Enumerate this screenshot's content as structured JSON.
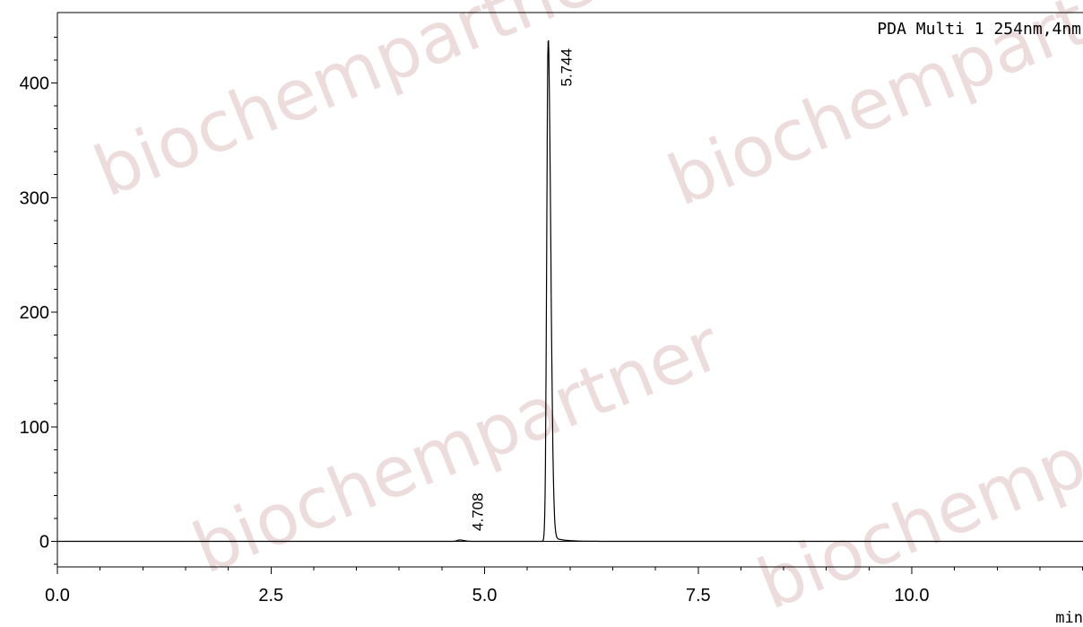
{
  "chart_data": {
    "type": "line",
    "legend": "PDA Multi 1 254nm,4nm",
    "x_unit": "min",
    "xlim": [
      0.0,
      12.0
    ],
    "ylim": [
      -22,
      462
    ],
    "x_ticks": [
      0.0,
      2.5,
      5.0,
      7.5,
      10.0
    ],
    "x_tick_labels": [
      "0.0",
      "2.5",
      "5.0",
      "7.5",
      "10.0"
    ],
    "y_ticks": [
      0,
      100,
      200,
      300,
      400
    ],
    "y_tick_labels": [
      "0",
      "100",
      "200",
      "300",
      "400"
    ],
    "grid": false,
    "peaks": [
      {
        "rt": 4.708,
        "label": "4.708",
        "height": 1.2,
        "width": 0.05
      },
      {
        "rt": 5.744,
        "label": "5.744",
        "height": 436,
        "width": 0.03
      }
    ],
    "watermark": "biochempartner"
  }
}
